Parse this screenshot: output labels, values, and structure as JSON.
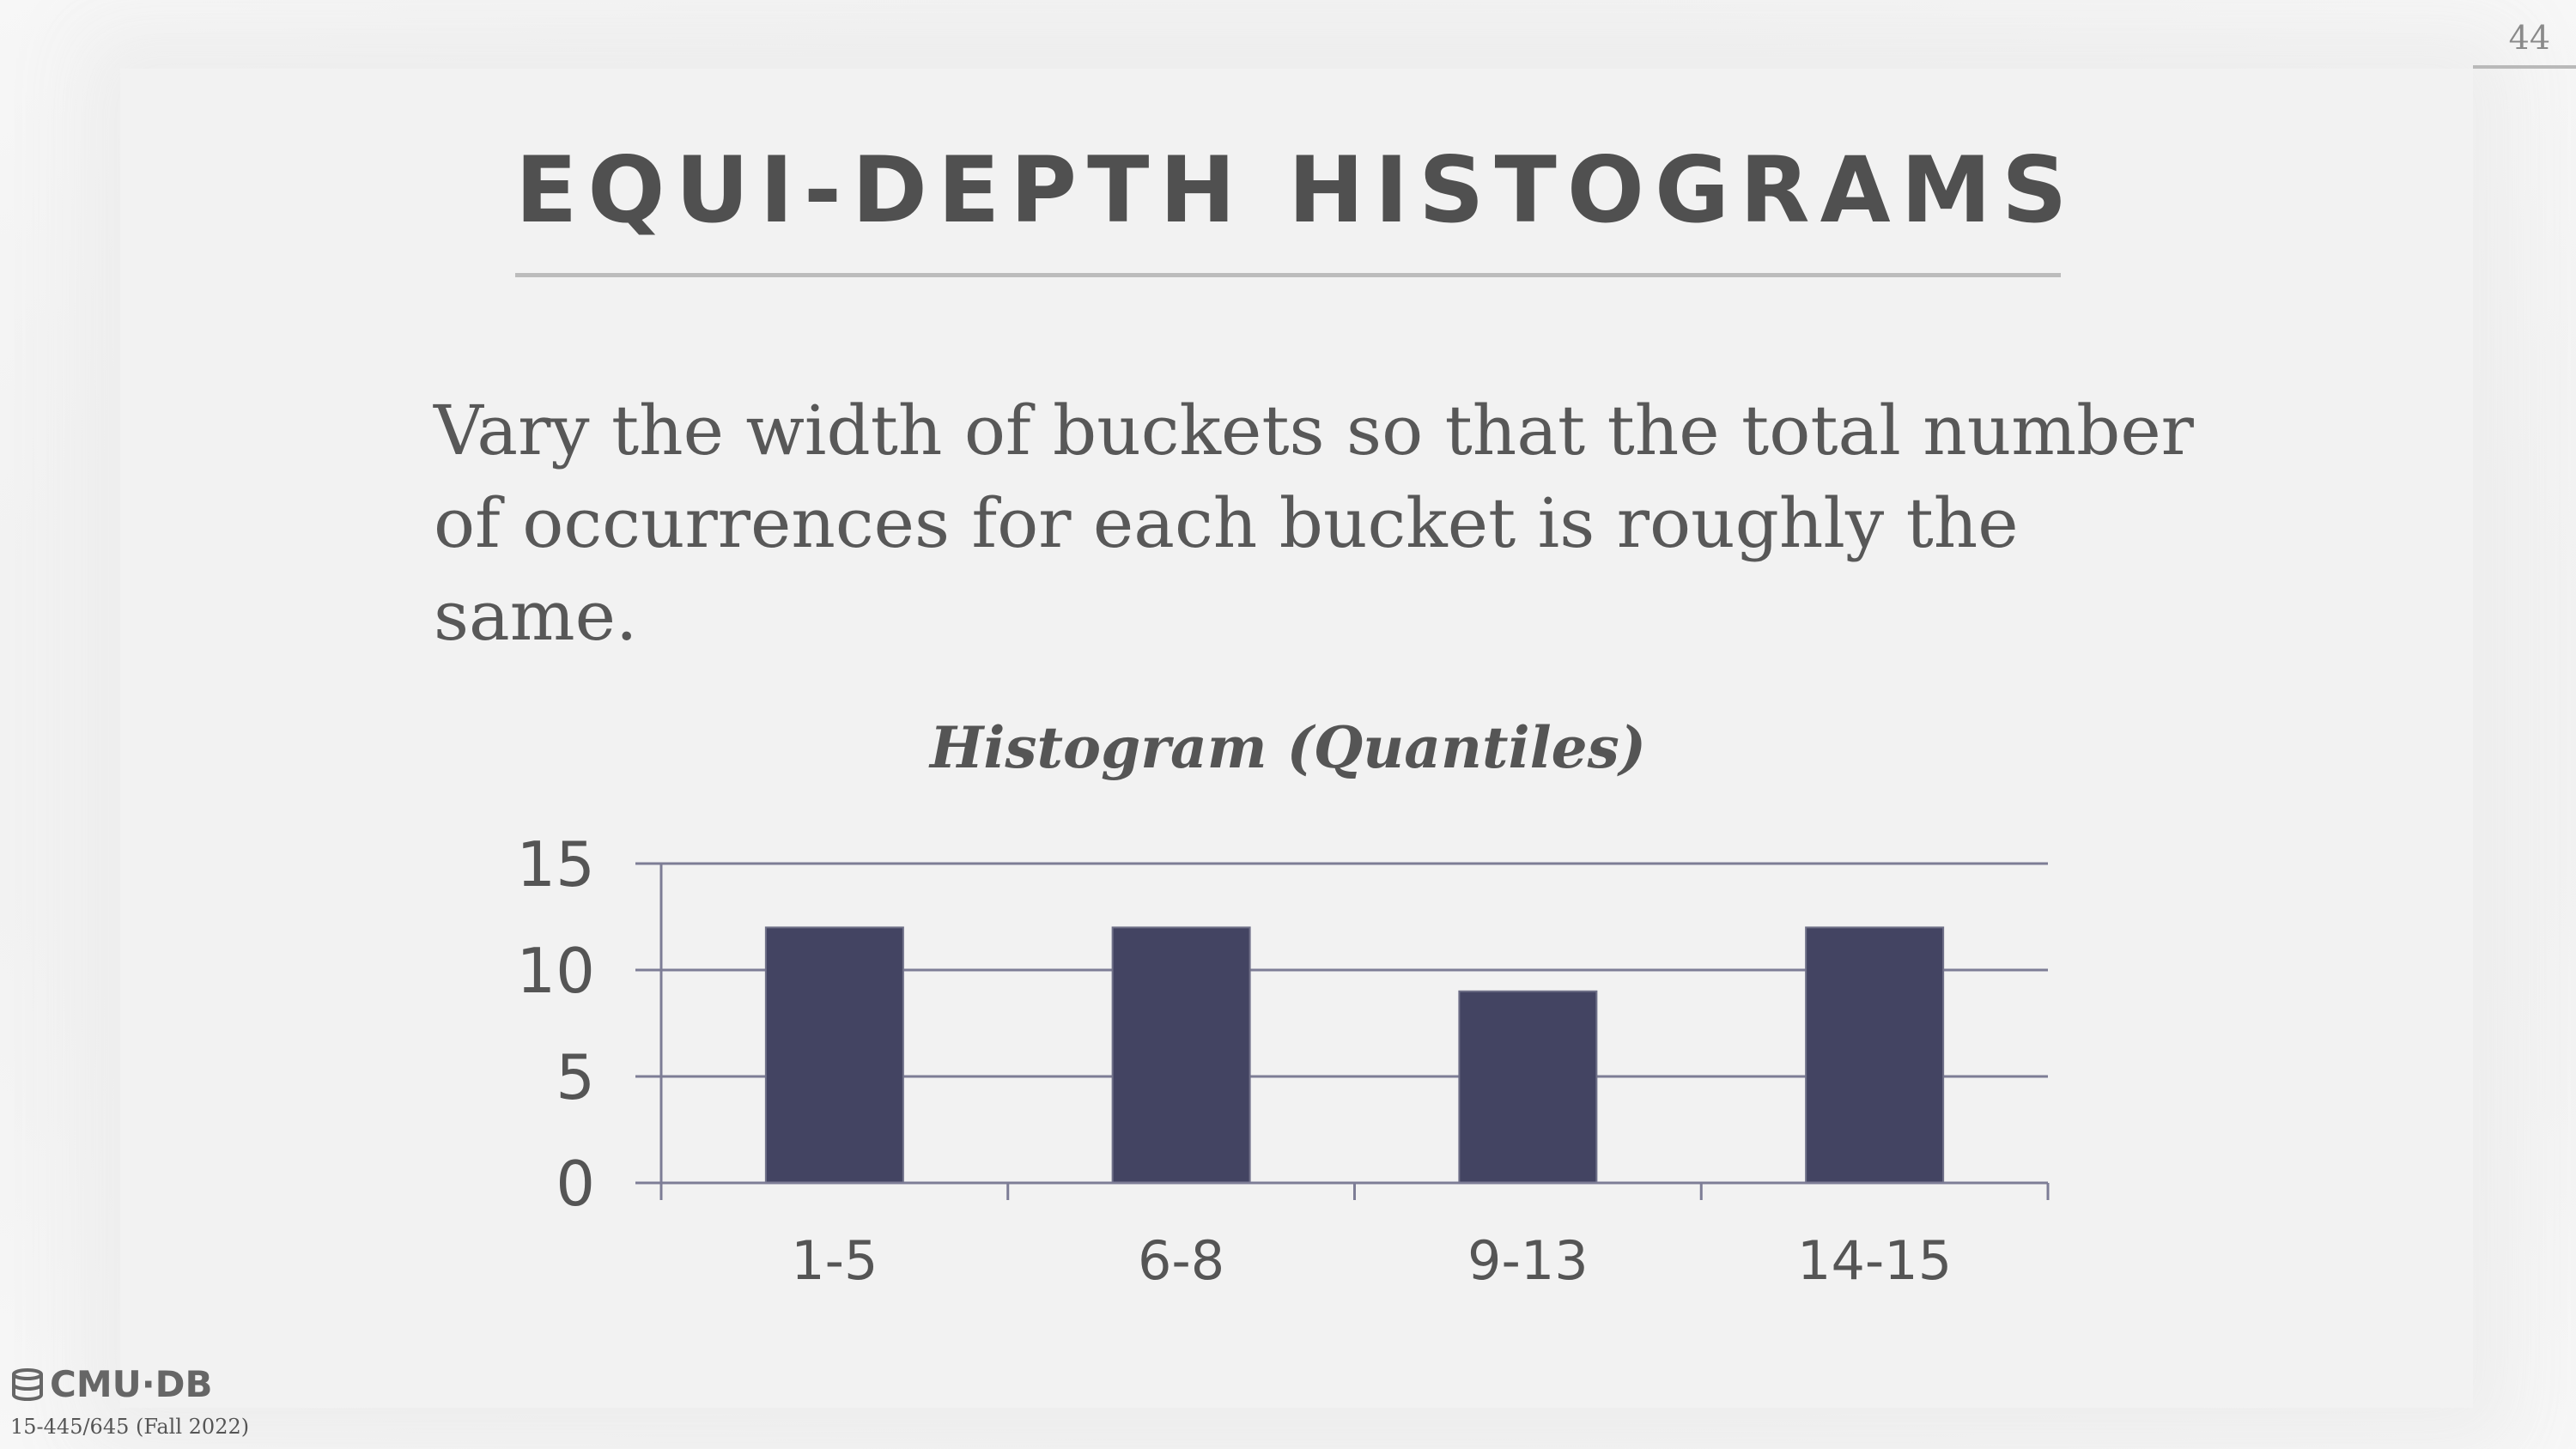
{
  "slide": {
    "page_number": "44",
    "title": "EQUI-DEPTH HISTOGRAMS",
    "body_line1": "Vary the width of buckets so that the total number",
    "body_line2": "of occurrences for each bucket is roughly the same.",
    "footer_logo": "CMU·DB",
    "footer_course": "15-445/645 (Fall 2022)"
  },
  "colors": {
    "bar": "#434462",
    "grid": "#7d7d96",
    "text": "#555555"
  },
  "chart_data": {
    "type": "bar",
    "title": "Histogram (Quantiles)",
    "categories": [
      "1-5",
      "6-8",
      "9-13",
      "14-15"
    ],
    "values": [
      12,
      12,
      9,
      12
    ],
    "ylim": [
      0,
      15
    ],
    "yticks": [
      0,
      5,
      10,
      15
    ],
    "xlabel": "",
    "ylabel": "",
    "grid": true,
    "legend": false
  }
}
